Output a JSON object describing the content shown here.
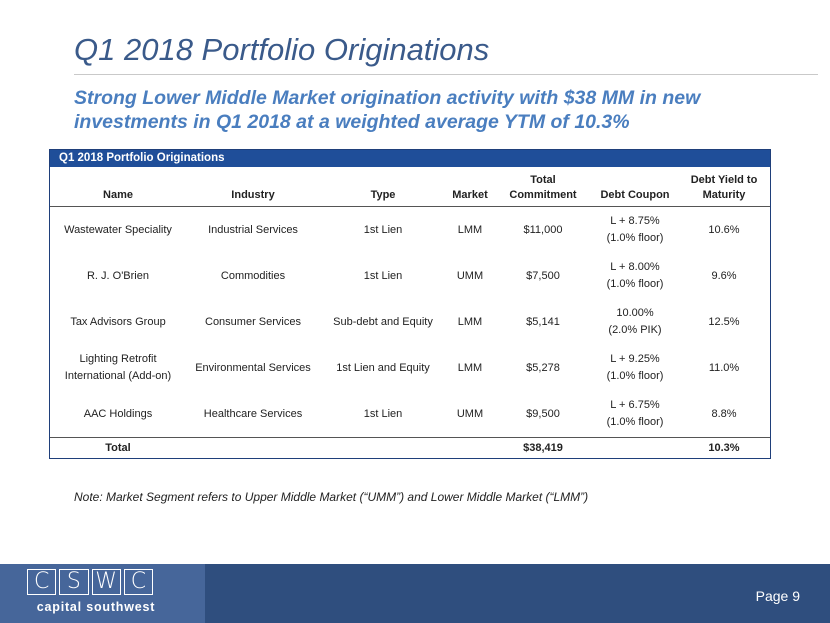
{
  "slide": {
    "title": "Q1 2018 Portfolio Originations",
    "subtitle": "Strong Lower Middle Market origination activity with $38 MM in new investments in Q1 2018 at a weighted average YTM of 10.3%",
    "note": "Note:  Market Segment refers to Upper Middle Market (“UMM”) and Lower Middle Market (“LMM”)"
  },
  "table": {
    "caption": "Q1 2018 Portfolio Originations",
    "headers": [
      "Name",
      "Industry",
      "Type",
      "Market",
      "Total Commitment",
      "Debt Coupon",
      "Debt Yield to Maturity"
    ],
    "rows": [
      {
        "name": "Wastewater Speciality",
        "industry": "Industrial Services",
        "type": "1st Lien",
        "market": "LMM",
        "commitment": "$11,000",
        "coupon_line1": "L + 8.75%",
        "coupon_line2": "(1.0% floor)",
        "yield": "10.6%"
      },
      {
        "name": "R. J. O'Brien",
        "industry": "Commodities",
        "type": "1st Lien",
        "market": "UMM",
        "commitment": "$7,500",
        "coupon_line1": "L + 8.00%",
        "coupon_line2": "(1.0% floor)",
        "yield": "9.6%"
      },
      {
        "name": "Tax Advisors Group",
        "industry": "Consumer Services",
        "type": "Sub-debt and Equity",
        "market": "LMM",
        "commitment": "$5,141",
        "coupon_line1": "10.00%",
        "coupon_line2": "(2.0% PIK)",
        "yield": "12.5%"
      },
      {
        "name": "Lighting Retrofit International (Add-on)",
        "industry": "Environmental Services",
        "type": "1st Lien and Equity",
        "market": "LMM",
        "commitment": "$5,278",
        "coupon_line1": "L + 9.25%",
        "coupon_line2": "(1.0% floor)",
        "yield": "11.0%"
      },
      {
        "name": "AAC Holdings",
        "industry": "Healthcare Services",
        "type": "1st Lien",
        "market": "UMM",
        "commitment": "$9,500",
        "coupon_line1": "L + 6.75%",
        "coupon_line2": "(1.0% floor)",
        "yield": "8.8%"
      }
    ],
    "total": {
      "label": "Total",
      "commitment": "$38,419",
      "yield": "10.3%"
    }
  },
  "footer": {
    "logo_letters": [
      "C",
      "S",
      "W",
      "C"
    ],
    "logo_text": "capital southwest",
    "page": "Page 9"
  },
  "colors": {
    "title": "#3a5a8a",
    "subtitle": "#4a7ebf",
    "table_header": "#1f4e99",
    "footer": "#2f4e7e",
    "footer_logo": "#46669a"
  }
}
